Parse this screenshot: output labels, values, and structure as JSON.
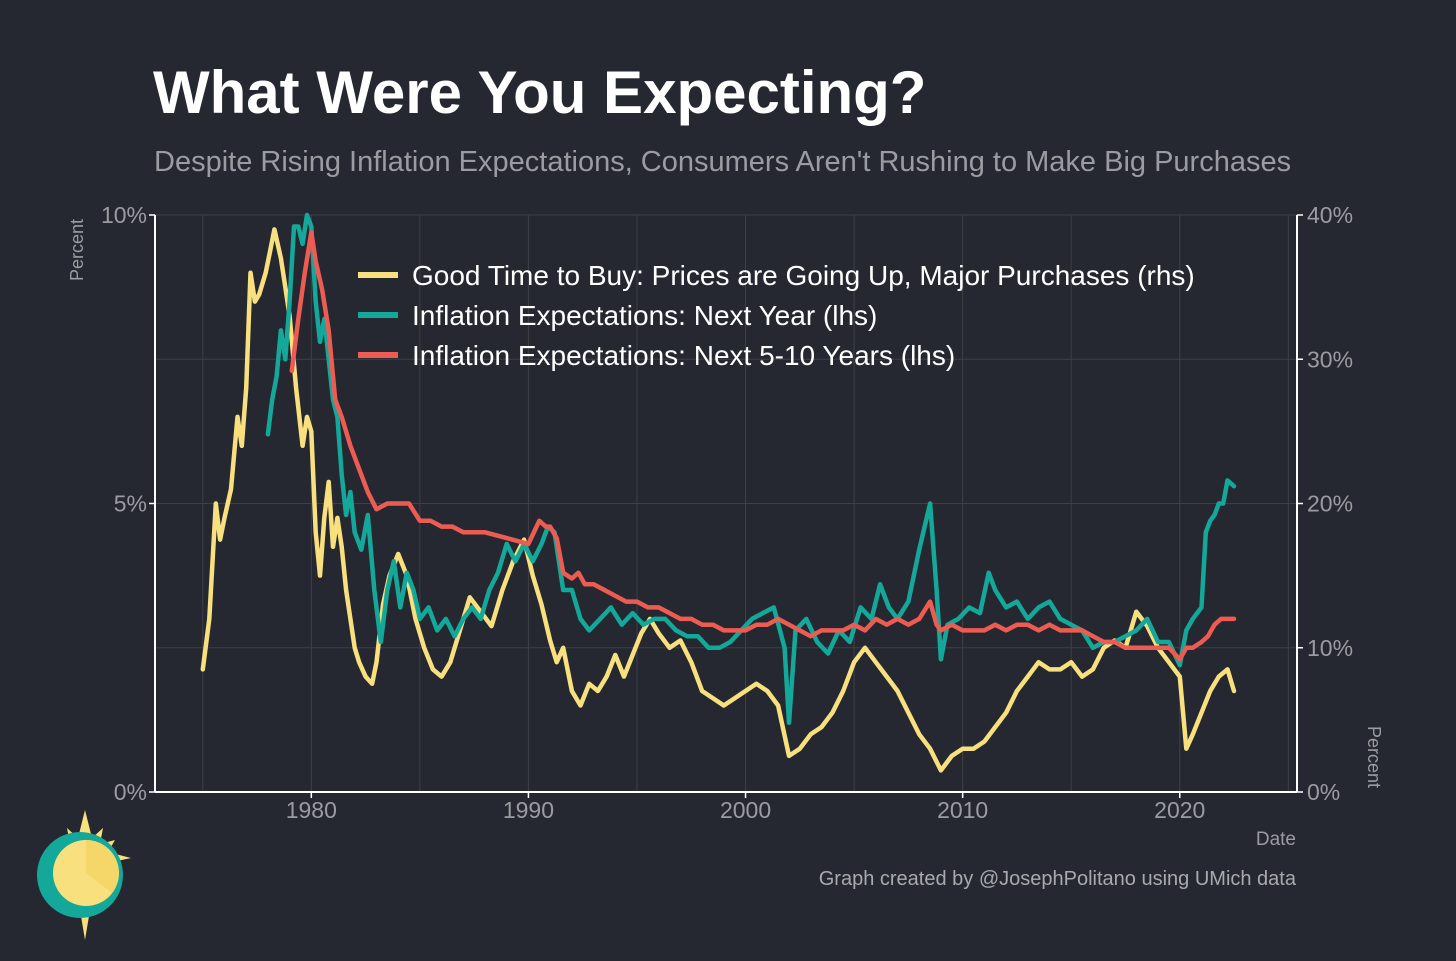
{
  "page": {
    "title": "What Were You Expecting?",
    "subtitle": "Despite Rising Inflation Expectations, Consumers Aren't Rushing to Make Big Purchases",
    "caption": "Graph created by @JosephPolitano using UMich data"
  },
  "logo": {
    "icon": "sun-icon"
  },
  "colors": {
    "background": "#252830",
    "grid": "#3d4047",
    "axis": "#ffffff",
    "muted_text": "#9a9ca1",
    "good_time_to_buy": "#f8e07e",
    "next_year": "#14a89a",
    "next_5_10_years": "#ed5c52"
  },
  "chart_data": {
    "type": "line",
    "title": "What Were You Expecting?",
    "subtitle": "Despite Rising Inflation Expectations, Consumers Aren't Rushing to Make Big Purchases",
    "xlabel": "Date",
    "ylabel_left": "Percent",
    "ylabel_right": "Percent",
    "xlim": [
      1972.8,
      2025.4
    ],
    "ylim_left": [
      0,
      10
    ],
    "ylim_right": [
      0,
      40
    ],
    "x_ticks": [
      1980,
      1990,
      2000,
      2010,
      2020
    ],
    "x_tick_labels": [
      "1980",
      "1990",
      "2000",
      "2010",
      "2020"
    ],
    "y_left_ticks": [
      0,
      5,
      10
    ],
    "y_left_tick_labels": [
      "0%",
      "5%",
      "10%"
    ],
    "y_right_ticks": [
      0,
      10,
      20,
      30,
      40
    ],
    "y_right_tick_labels": [
      "0%",
      "10%",
      "20%",
      "30%",
      "40%"
    ],
    "grid": true,
    "legend_position": "top-center",
    "series": [
      {
        "name": "Good Time to Buy: Prices are Going Up, Major Purchases (rhs)",
        "axis": "right",
        "color": "#f8e07e",
        "x": [
          1975.0,
          1975.3,
          1975.6,
          1975.8,
          1976.0,
          1976.3,
          1976.6,
          1976.8,
          1977.0,
          1977.2,
          1977.4,
          1977.6,
          1977.9,
          1978.1,
          1978.3,
          1978.6,
          1978.8,
          1979.0,
          1979.3,
          1979.6,
          1979.8,
          1980.0,
          1980.2,
          1980.4,
          1980.6,
          1980.8,
          1981.0,
          1981.2,
          1981.4,
          1981.6,
          1981.8,
          1982.0,
          1982.2,
          1982.5,
          1982.8,
          1983.0,
          1983.3,
          1983.6,
          1984.0,
          1984.4,
          1984.8,
          1985.2,
          1985.6,
          1986.0,
          1986.4,
          1986.8,
          1987.3,
          1987.8,
          1988.3,
          1988.8,
          1989.3,
          1989.8,
          1990.2,
          1990.6,
          1991.0,
          1991.3,
          1991.6,
          1992.0,
          1992.4,
          1992.8,
          1993.2,
          1993.6,
          1994.0,
          1994.4,
          1994.8,
          1995.2,
          1995.6,
          1996.0,
          1996.5,
          1997.0,
          1997.5,
          1998.0,
          1998.5,
          1999.0,
          1999.5,
          2000.0,
          2000.5,
          2001.0,
          2001.5,
          2002.0,
          2002.5,
          2003.0,
          2003.5,
          2004.0,
          2004.5,
          2005.0,
          2005.5,
          2006.0,
          2006.5,
          2007.0,
          2007.5,
          2008.0,
          2008.5,
          2009.0,
          2009.5,
          2010.0,
          2010.5,
          2011.0,
          2011.5,
          2012.0,
          2012.5,
          2013.0,
          2013.5,
          2014.0,
          2014.5,
          2015.0,
          2015.5,
          2016.0,
          2016.5,
          2017.0,
          2017.5,
          2018.0,
          2018.5,
          2019.0,
          2019.5,
          2020.0,
          2020.3,
          2020.6,
          2021.0,
          2021.4,
          2021.8,
          2022.2,
          2022.5
        ],
        "values": [
          8.5,
          12,
          20,
          17.5,
          19,
          21,
          26,
          24,
          28,
          36,
          34,
          34.5,
          36,
          37.5,
          39,
          37,
          35,
          33,
          28,
          24,
          26,
          25,
          18,
          15,
          19,
          21.5,
          17,
          19,
          17,
          14,
          12,
          10,
          9,
          8,
          7.5,
          9,
          13,
          15,
          16.5,
          15,
          12,
          10,
          8.5,
          8,
          9,
          11,
          13.5,
          12.5,
          11.5,
          14,
          16,
          17.5,
          15,
          13,
          10.5,
          9,
          10,
          7,
          6,
          7.5,
          7,
          8,
          9.5,
          8,
          9.5,
          11,
          12,
          11,
          10,
          10.5,
          9,
          7,
          6.5,
          6,
          6.5,
          7,
          7.5,
          7,
          6,
          2.5,
          3,
          4,
          4.5,
          5.5,
          7,
          9,
          10,
          9,
          8,
          7,
          5.5,
          4,
          3,
          1.5,
          2.5,
          3,
          3,
          3.5,
          4.5,
          5.5,
          7,
          8,
          9,
          8.5,
          8.5,
          9,
          8,
          8.5,
          10,
          10.5,
          10,
          12.5,
          11.5,
          10,
          9,
          8,
          3,
          4,
          5.5,
          7,
          8,
          8.5,
          7
        ]
      },
      {
        "name": "Inflation Expectations: Next Year (lhs)",
        "axis": "left",
        "color": "#14a89a",
        "x": [
          1978.0,
          1978.2,
          1978.4,
          1978.6,
          1978.8,
          1979.0,
          1979.2,
          1979.4,
          1979.6,
          1979.8,
          1980.0,
          1980.2,
          1980.4,
          1980.6,
          1980.8,
          1981.0,
          1981.2,
          1981.4,
          1981.6,
          1981.8,
          1982.0,
          1982.3,
          1982.6,
          1982.9,
          1983.2,
          1983.5,
          1983.8,
          1984.1,
          1984.4,
          1984.7,
          1985.0,
          1985.4,
          1985.8,
          1986.2,
          1986.6,
          1987.0,
          1987.4,
          1987.8,
          1988.2,
          1988.6,
          1989.0,
          1989.4,
          1989.8,
          1990.2,
          1990.6,
          1990.9,
          1991.2,
          1991.6,
          1992.0,
          1992.4,
          1992.8,
          1993.3,
          1993.8,
          1994.3,
          1994.8,
          1995.3,
          1995.8,
          1996.3,
          1996.8,
          1997.3,
          1997.8,
          1998.3,
          1998.8,
          1999.3,
          1999.8,
          2000.3,
          2000.8,
          2001.3,
          2001.8,
          2002.0,
          2002.3,
          2002.8,
          2003.3,
          2003.8,
          2004.3,
          2004.8,
          2005.3,
          2005.8,
          2006.2,
          2006.6,
          2007.0,
          2007.5,
          2008.0,
          2008.5,
          2008.8,
          2009.0,
          2009.3,
          2009.8,
          2010.3,
          2010.8,
          2011.2,
          2011.5,
          2012.0,
          2012.5,
          2013.0,
          2013.5,
          2014.0,
          2014.5,
          2015.0,
          2015.5,
          2016.0,
          2016.5,
          2017.0,
          2017.5,
          2018.0,
          2018.5,
          2019.0,
          2019.5,
          2020.0,
          2020.3,
          2020.6,
          2021.0,
          2021.2,
          2021.4,
          2021.6,
          2021.8,
          2022.0,
          2022.2,
          2022.5
        ],
        "values": [
          6.2,
          6.8,
          7.2,
          8.0,
          7.5,
          8.5,
          9.8,
          9.8,
          9.5,
          10.0,
          9.8,
          8.5,
          7.8,
          8.2,
          7.5,
          6.8,
          6.5,
          5.5,
          4.8,
          5.2,
          4.5,
          4.2,
          4.8,
          3.5,
          2.6,
          3.5,
          4.0,
          3.2,
          3.8,
          3.5,
          3.0,
          3.2,
          2.8,
          3.0,
          2.7,
          3.0,
          3.2,
          3.0,
          3.5,
          3.8,
          4.3,
          4.0,
          4.3,
          4.0,
          4.3,
          4.6,
          4.5,
          3.5,
          3.5,
          3.0,
          2.8,
          3.0,
          3.2,
          2.9,
          3.1,
          2.9,
          3.0,
          3.0,
          2.8,
          2.7,
          2.7,
          2.5,
          2.5,
          2.6,
          2.8,
          3.0,
          3.1,
          3.2,
          2.5,
          1.2,
          2.8,
          3.0,
          2.6,
          2.4,
          2.8,
          2.6,
          3.2,
          3.0,
          3.6,
          3.2,
          3.0,
          3.3,
          4.2,
          5.0,
          3.5,
          2.3,
          2.9,
          3.0,
          3.2,
          3.1,
          3.8,
          3.5,
          3.2,
          3.3,
          3.0,
          3.2,
          3.3,
          3.0,
          2.9,
          2.8,
          2.5,
          2.6,
          2.6,
          2.7,
          2.8,
          3.0,
          2.6,
          2.6,
          2.2,
          2.8,
          3.0,
          3.2,
          4.5,
          4.7,
          4.8,
          5.0,
          5.0,
          5.4,
          5.3
        ]
      },
      {
        "name": "Inflation Expectations: Next 5-10 Years (lhs)",
        "axis": "left",
        "color": "#ed5c52",
        "x": [
          1979.1,
          1979.4,
          1979.7,
          1980.0,
          1980.2,
          1980.5,
          1980.8,
          1981.1,
          1981.4,
          1981.8,
          1982.2,
          1982.6,
          1983.0,
          1983.5,
          1984.0,
          1984.5,
          1985.0,
          1985.5,
          1986.0,
          1986.5,
          1987.0,
          1988.0,
          1989.0,
          1990.0,
          1990.5,
          1990.8,
          1991.0,
          1991.3,
          1991.6,
          1992.0,
          1992.3,
          1992.6,
          1993.0,
          1993.5,
          1994.0,
          1994.5,
          1995.0,
          1995.5,
          1996.0,
          1996.5,
          1997.0,
          1997.5,
          1998.0,
          1998.5,
          1999.0,
          1999.5,
          2000.0,
          2000.5,
          2001.0,
          2001.5,
          2002.0,
          2002.5,
          2003.0,
          2003.5,
          2004.0,
          2004.5,
          2005.0,
          2005.5,
          2006.0,
          2006.5,
          2007.0,
          2007.5,
          2008.0,
          2008.5,
          2008.8,
          2009.0,
          2009.5,
          2010.0,
          2010.5,
          2011.0,
          2011.5,
          2012.0,
          2012.5,
          2013.0,
          2013.5,
          2014.0,
          2014.5,
          2015.0,
          2015.5,
          2016.0,
          2016.5,
          2017.0,
          2017.5,
          2018.0,
          2018.5,
          2019.0,
          2019.5,
          2020.0,
          2020.3,
          2020.6,
          2021.0,
          2021.3,
          2021.6,
          2021.9,
          2022.2,
          2022.5
        ],
        "values": [
          7.3,
          8.2,
          9.0,
          9.7,
          9.2,
          8.7,
          8.0,
          6.8,
          6.5,
          6.0,
          5.6,
          5.2,
          4.9,
          5.0,
          5.0,
          5.0,
          4.7,
          4.7,
          4.6,
          4.6,
          4.5,
          4.5,
          4.4,
          4.3,
          4.7,
          4.6,
          4.6,
          4.4,
          3.8,
          3.7,
          3.8,
          3.6,
          3.6,
          3.5,
          3.4,
          3.3,
          3.3,
          3.2,
          3.2,
          3.1,
          3.0,
          3.0,
          2.9,
          2.9,
          2.8,
          2.8,
          2.8,
          2.9,
          2.9,
          3.0,
          2.9,
          2.8,
          2.7,
          2.8,
          2.8,
          2.8,
          2.9,
          2.8,
          3.0,
          2.9,
          3.0,
          2.9,
          3.0,
          3.3,
          2.9,
          2.8,
          2.9,
          2.8,
          2.8,
          2.8,
          2.9,
          2.8,
          2.9,
          2.9,
          2.8,
          2.9,
          2.8,
          2.8,
          2.8,
          2.7,
          2.6,
          2.6,
          2.5,
          2.5,
          2.5,
          2.5,
          2.5,
          2.3,
          2.5,
          2.5,
          2.6,
          2.7,
          2.9,
          3.0,
          3.0,
          3.0
        ]
      }
    ]
  }
}
